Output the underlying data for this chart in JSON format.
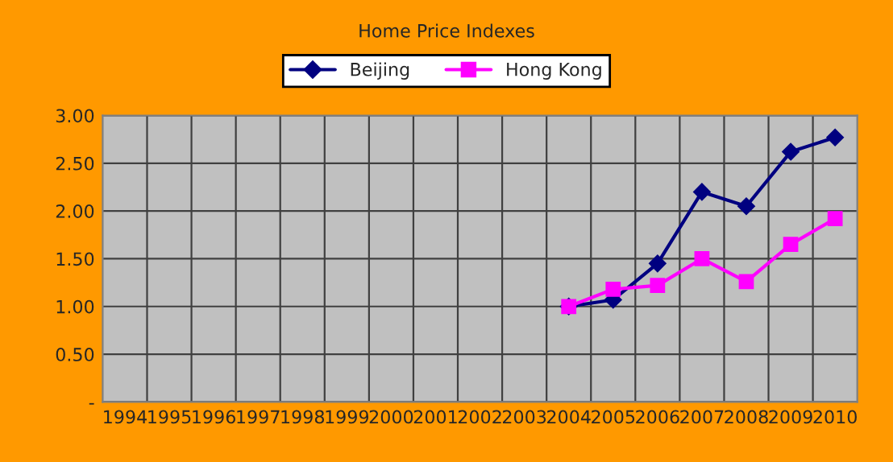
{
  "chart_data": {
    "type": "line",
    "title": "Home Price Indexes",
    "categories": [
      "1994",
      "1995",
      "1996",
      "1997",
      "1998",
      "1999",
      "2000",
      "2001",
      "2002",
      "2003",
      "2004",
      "2005",
      "2006",
      "2007",
      "2008",
      "2009",
      "2010"
    ],
    "series": [
      {
        "name": "Beijing",
        "color": "#000080",
        "marker": "diamond",
        "values": [
          null,
          null,
          null,
          null,
          null,
          null,
          null,
          null,
          null,
          null,
          1.0,
          1.07,
          1.45,
          2.2,
          2.05,
          2.62,
          2.77
        ]
      },
      {
        "name": "Hong Kong",
        "color": "#ff00ff",
        "marker": "square",
        "values": [
          null,
          null,
          null,
          null,
          null,
          null,
          null,
          null,
          null,
          null,
          1.0,
          1.18,
          1.22,
          1.5,
          1.26,
          1.65,
          1.92
        ]
      }
    ],
    "ylim": [
      0,
      3.0
    ],
    "yticks": [
      {
        "value": 0,
        "label": "-"
      },
      {
        "value": 0.5,
        "label": "0.50"
      },
      {
        "value": 1.0,
        "label": "1.00"
      },
      {
        "value": 1.5,
        "label": "1.50"
      },
      {
        "value": 2.0,
        "label": "2.00"
      },
      {
        "value": 2.5,
        "label": "2.50"
      },
      {
        "value": 3.0,
        "label": "3.00"
      }
    ],
    "grid": true,
    "legend": "top",
    "line_style": "solid"
  }
}
